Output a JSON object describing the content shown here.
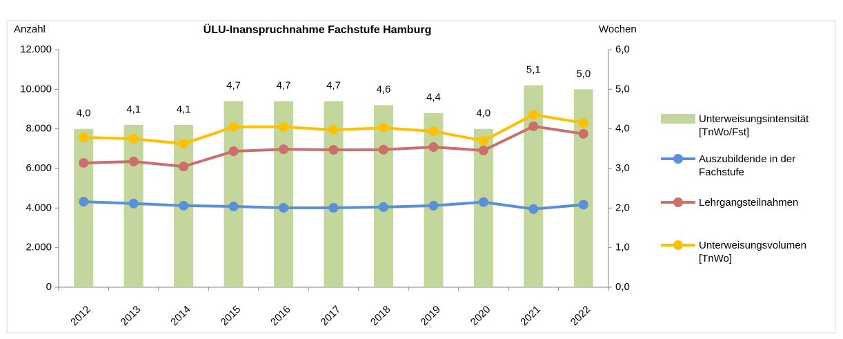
{
  "chart_data": {
    "type": "bar",
    "title": "ÜLU-Inanspruchnahme Fachstufe Hamburg",
    "y_label": "Anzahl",
    "y2_label": "Wochen",
    "categories": [
      "2012",
      "2013",
      "2014",
      "2015",
      "2016",
      "2017",
      "2018",
      "2019",
      "2020",
      "2021",
      "2022"
    ],
    "series": [
      {
        "name": "Unterweisungsintensität [TnWo/Fst]",
        "type": "bar",
        "axis": "y2",
        "color": "#c3d69b",
        "values": [
          4.0,
          4.1,
          4.1,
          4.7,
          4.7,
          4.7,
          4.6,
          4.4,
          4.0,
          5.1,
          5.0
        ],
        "value_labels": [
          "4,0",
          "4,1",
          "4,1",
          "4,7",
          "4,7",
          "4,7",
          "4,6",
          "4,4",
          "4,0",
          "5,1",
          "5,0"
        ]
      },
      {
        "name": "Auszubildende in der Fachstufe",
        "type": "line",
        "color": "#5b8fd6",
        "values": [
          4320,
          4230,
          4120,
          4080,
          4010,
          4010,
          4050,
          4120,
          4300,
          3950,
          4170
        ]
      },
      {
        "name": "Lehrgangsteilnahmen",
        "type": "line",
        "color": "#cc6e6b",
        "values": [
          6280,
          6350,
          6100,
          6870,
          6970,
          6940,
          6950,
          7080,
          6910,
          8130,
          7750
        ]
      },
      {
        "name": "Unterweisungsvolumen [TnWo]",
        "type": "line",
        "color": "#ffc000",
        "values": [
          7570,
          7500,
          7250,
          8100,
          8100,
          7950,
          8050,
          7880,
          7400,
          8720,
          8300
        ]
      }
    ],
    "ylim": [
      0,
      12000
    ],
    "yticks": [
      0,
      {
        "value": 2000,
        "label": "2.000"
      },
      {
        "value": 4000,
        "label": "4.000"
      },
      {
        "value": 6000,
        "label": "6.000"
      },
      {
        "value": 8000,
        "label": "8.000"
      },
      {
        "value": 10000,
        "label": "10.000"
      },
      {
        "value": 12000,
        "label": "12.000"
      }
    ],
    "y2lim": [
      0,
      6
    ],
    "y2ticks": [
      {
        "value": 0,
        "label": "0,0"
      },
      {
        "value": 1,
        "label": "1,0"
      },
      {
        "value": 2,
        "label": "2,0"
      },
      {
        "value": 3,
        "label": "3,0"
      },
      {
        "value": 4,
        "label": "4,0"
      },
      {
        "value": 5,
        "label": "5,0"
      },
      {
        "value": 6,
        "label": "6,0"
      }
    ],
    "grid": false,
    "legend": "right"
  }
}
